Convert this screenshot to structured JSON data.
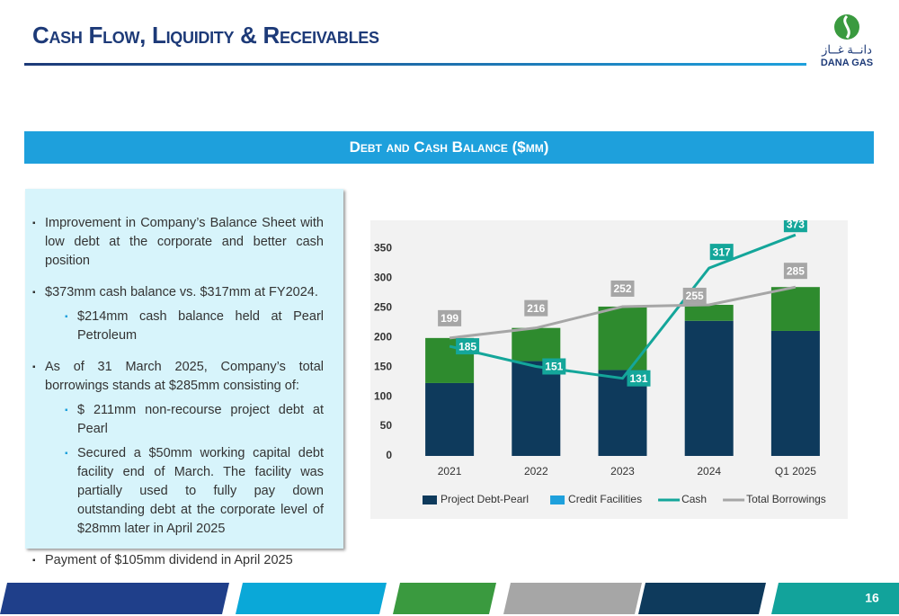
{
  "header": {
    "title": "Cash Flow, Liquidity & Receivables",
    "logo_arabic": "دانــة غــاز",
    "logo_text": "DANA GAS"
  },
  "section_title": "Debt and Cash Balance ($mm)",
  "bullets": [
    {
      "level": 1,
      "text": "Improvement in Company’s Balance Sheet with low debt at the corporate  and better cash position"
    },
    {
      "level": 1,
      "text": "$373mm cash balance vs. $317mm at  FY2024."
    },
    {
      "level": 2,
      "text": "$214mm cash balance held at Pearl Petroleum"
    },
    {
      "level": 1,
      "text": "As of 31 March 2025, Company’s total borrowings stands at $285mm consisting of:"
    },
    {
      "level": 2,
      "text": "$ 211mm non-recourse project debt at Pearl"
    },
    {
      "level": 2,
      "text": "Secured a $50mm working capital debt facility end of March. The facility was partially used to fully pay down outstanding debt at the corporate level  of  $28mm later in April 2025"
    },
    {
      "level": 1,
      "text": "Payment of $105mm dividend in April 2025"
    }
  ],
  "page_number": "16",
  "chart_data": {
    "type": "combo",
    "categories": [
      "2021",
      "2022",
      "2023",
      "2024",
      "Q1 2025"
    ],
    "ylim": [
      0,
      390
    ],
    "yticks": [
      0,
      50,
      100,
      150,
      200,
      250,
      300,
      350
    ],
    "series": [
      {
        "name": "Project Debt-Pearl",
        "style": "bar",
        "color": "#0e3a5c",
        "values": [
          123,
          160,
          145,
          228,
          211
        ]
      },
      {
        "style": "bar",
        "color": "#2e8b2e",
        "values": [
          76,
          56,
          107,
          27,
          74
        ]
      },
      {
        "name": "Credit Facilities",
        "style": "bar",
        "color": "#1ea0dc",
        "values": [
          0,
          0,
          0,
          0,
          0
        ]
      },
      {
        "name": "Cash",
        "style": "line",
        "color": "#14a69a",
        "values": [
          185,
          151,
          131,
          317,
          373
        ],
        "labels": true
      },
      {
        "name": "Total Borrowings",
        "style": "line",
        "color": "#a6a6a6",
        "values": [
          199,
          216,
          252,
          255,
          285
        ],
        "labels": true
      }
    ]
  }
}
